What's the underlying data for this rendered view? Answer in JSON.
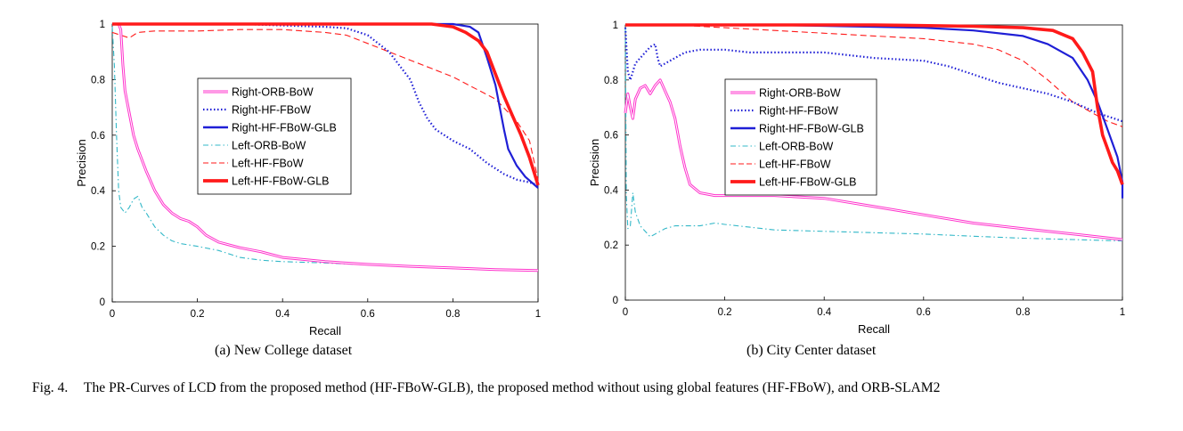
{
  "figure": {
    "label": "Fig. 4.",
    "caption": "The PR-Curves of LCD from the proposed method (HF-FBoW-GLB), the proposed method without using global features (HF-FBoW), and ORB-SLAM2"
  },
  "colors": {
    "magenta": "#ff33cc",
    "blue": "#1f1fd6",
    "cyan": "#33b8c8",
    "red": "#ff1a1a"
  },
  "chart_data": [
    {
      "type": "line",
      "subcaption": "(a)  New College dataset",
      "xlabel": "Recall",
      "ylabel": "Precision",
      "xlim": [
        0,
        1
      ],
      "ylim": [
        0,
        1
      ],
      "xticks": [
        "0",
        "0.2",
        "0.4",
        "0.6",
        "0.8",
        "1"
      ],
      "yticks": [
        "0",
        "0.2",
        "0.4",
        "0.6",
        "0.8",
        "1"
      ],
      "legend_position": "center-left",
      "series": [
        {
          "name": "Right-ORB-BoW",
          "style": "double",
          "color": "#ff33cc",
          "points": [
            [
              0,
              1
            ],
            [
              0.015,
              1
            ],
            [
              0.02,
              0.98
            ],
            [
              0.025,
              0.85
            ],
            [
              0.03,
              0.76
            ],
            [
              0.04,
              0.68
            ],
            [
              0.05,
              0.6
            ],
            [
              0.06,
              0.55
            ],
            [
              0.08,
              0.47
            ],
            [
              0.1,
              0.4
            ],
            [
              0.12,
              0.35
            ],
            [
              0.14,
              0.32
            ],
            [
              0.16,
              0.3
            ],
            [
              0.18,
              0.29
            ],
            [
              0.2,
              0.27
            ],
            [
              0.22,
              0.24
            ],
            [
              0.25,
              0.215
            ],
            [
              0.3,
              0.195
            ],
            [
              0.35,
              0.18
            ],
            [
              0.4,
              0.16
            ],
            [
              0.5,
              0.145
            ],
            [
              0.6,
              0.135
            ],
            [
              0.7,
              0.128
            ],
            [
              0.8,
              0.122
            ],
            [
              0.9,
              0.116
            ],
            [
              1,
              0.113
            ]
          ]
        },
        {
          "name": "Right-HF-FBoW",
          "style": "dotted",
          "color": "#1f1fd6",
          "points": [
            [
              0,
              1
            ],
            [
              0.3,
              1
            ],
            [
              0.5,
              0.99
            ],
            [
              0.55,
              0.985
            ],
            [
              0.6,
              0.96
            ],
            [
              0.65,
              0.9
            ],
            [
              0.68,
              0.84
            ],
            [
              0.7,
              0.8
            ],
            [
              0.72,
              0.72
            ],
            [
              0.74,
              0.66
            ],
            [
              0.76,
              0.62
            ],
            [
              0.8,
              0.58
            ],
            [
              0.84,
              0.55
            ],
            [
              0.88,
              0.5
            ],
            [
              0.92,
              0.46
            ],
            [
              0.95,
              0.44
            ],
            [
              0.98,
              0.43
            ],
            [
              1,
              0.42
            ]
          ]
        },
        {
          "name": "Right-HF-FBoW-GLB",
          "style": "solid",
          "color": "#1f1fd6",
          "points": [
            [
              0,
              1
            ],
            [
              0.5,
              1
            ],
            [
              0.8,
              1
            ],
            [
              0.84,
              0.99
            ],
            [
              0.86,
              0.97
            ],
            [
              0.88,
              0.88
            ],
            [
              0.9,
              0.78
            ],
            [
              0.92,
              0.62
            ],
            [
              0.93,
              0.55
            ],
            [
              0.95,
              0.49
            ],
            [
              0.97,
              0.45
            ],
            [
              1,
              0.41
            ]
          ]
        },
        {
          "name": "Left-ORB-BoW",
          "style": "dashdot",
          "color": "#33b8c8",
          "points": [
            [
              0,
              0.99
            ],
            [
              0.005,
              0.85
            ],
            [
              0.01,
              0.6
            ],
            [
              0.015,
              0.4
            ],
            [
              0.02,
              0.34
            ],
            [
              0.03,
              0.32
            ],
            [
              0.04,
              0.34
            ],
            [
              0.05,
              0.37
            ],
            [
              0.06,
              0.38
            ],
            [
              0.07,
              0.34
            ],
            [
              0.08,
              0.32
            ],
            [
              0.1,
              0.27
            ],
            [
              0.12,
              0.24
            ],
            [
              0.14,
              0.22
            ],
            [
              0.16,
              0.21
            ],
            [
              0.2,
              0.2
            ],
            [
              0.25,
              0.185
            ],
            [
              0.3,
              0.16
            ],
            [
              0.35,
              0.15
            ],
            [
              0.4,
              0.145
            ],
            [
              0.5,
              0.14
            ],
            [
              0.6,
              0.133
            ],
            [
              0.7,
              0.126
            ],
            [
              0.8,
              0.12
            ],
            [
              0.9,
              0.115
            ],
            [
              1,
              0.112
            ]
          ]
        },
        {
          "name": "Left-HF-FBoW",
          "style": "dashed",
          "color": "#ff1a1a",
          "points": [
            [
              0,
              0.97
            ],
            [
              0.02,
              0.96
            ],
            [
              0.04,
              0.95
            ],
            [
              0.06,
              0.97
            ],
            [
              0.1,
              0.975
            ],
            [
              0.2,
              0.975
            ],
            [
              0.3,
              0.98
            ],
            [
              0.4,
              0.98
            ],
            [
              0.5,
              0.97
            ],
            [
              0.55,
              0.96
            ],
            [
              0.6,
              0.93
            ],
            [
              0.65,
              0.9
            ],
            [
              0.7,
              0.87
            ],
            [
              0.75,
              0.84
            ],
            [
              0.8,
              0.81
            ],
            [
              0.85,
              0.77
            ],
            [
              0.9,
              0.73
            ],
            [
              0.95,
              0.65
            ],
            [
              0.98,
              0.58
            ],
            [
              1,
              0.44
            ]
          ]
        },
        {
          "name": "Left-HF-FBoW-GLB",
          "style": "thick",
          "color": "#ff1a1a",
          "points": [
            [
              0,
              1
            ],
            [
              0.5,
              1
            ],
            [
              0.75,
              1
            ],
            [
              0.8,
              0.99
            ],
            [
              0.83,
              0.97
            ],
            [
              0.86,
              0.94
            ],
            [
              0.88,
              0.9
            ],
            [
              0.9,
              0.82
            ],
            [
              0.92,
              0.74
            ],
            [
              0.94,
              0.67
            ],
            [
              0.96,
              0.6
            ],
            [
              0.98,
              0.52
            ],
            [
              1,
              0.42
            ]
          ]
        }
      ]
    },
    {
      "type": "line",
      "subcaption": "(b)  City Center dataset",
      "xlabel": "Recall",
      "ylabel": "Precision",
      "xlim": [
        0,
        1
      ],
      "ylim": [
        0,
        1
      ],
      "xticks": [
        "0",
        "0.2",
        "0.4",
        "0.6",
        "0.8",
        "1"
      ],
      "yticks": [
        "0",
        "0.2",
        "0.4",
        "0.6",
        "0.8",
        "1"
      ],
      "legend_position": "center-left",
      "series": [
        {
          "name": "Right-ORB-BoW",
          "style": "double",
          "color": "#ff33cc",
          "points": [
            [
              0,
              0.68
            ],
            [
              0.005,
              0.75
            ],
            [
              0.01,
              0.7
            ],
            [
              0.015,
              0.66
            ],
            [
              0.02,
              0.73
            ],
            [
              0.03,
              0.77
            ],
            [
              0.04,
              0.78
            ],
            [
              0.05,
              0.75
            ],
            [
              0.06,
              0.78
            ],
            [
              0.07,
              0.8
            ],
            [
              0.08,
              0.76
            ],
            [
              0.09,
              0.72
            ],
            [
              0.1,
              0.66
            ],
            [
              0.11,
              0.56
            ],
            [
              0.12,
              0.48
            ],
            [
              0.13,
              0.42
            ],
            [
              0.15,
              0.39
            ],
            [
              0.18,
              0.38
            ],
            [
              0.25,
              0.38
            ],
            [
              0.3,
              0.38
            ],
            [
              0.4,
              0.37
            ],
            [
              0.5,
              0.34
            ],
            [
              0.6,
              0.31
            ],
            [
              0.7,
              0.28
            ],
            [
              0.8,
              0.26
            ],
            [
              0.9,
              0.24
            ],
            [
              1,
              0.22
            ]
          ]
        },
        {
          "name": "Right-HF-FBoW",
          "style": "dotted",
          "color": "#1f1fd6",
          "points": [
            [
              0,
              0.99
            ],
            [
              0.005,
              0.83
            ],
            [
              0.01,
              0.8
            ],
            [
              0.02,
              0.86
            ],
            [
              0.03,
              0.88
            ],
            [
              0.04,
              0.9
            ],
            [
              0.05,
              0.92
            ],
            [
              0.06,
              0.93
            ],
            [
              0.065,
              0.88
            ],
            [
              0.07,
              0.85
            ],
            [
              0.08,
              0.86
            ],
            [
              0.1,
              0.88
            ],
            [
              0.12,
              0.9
            ],
            [
              0.15,
              0.91
            ],
            [
              0.2,
              0.91
            ],
            [
              0.25,
              0.9
            ],
            [
              0.3,
              0.9
            ],
            [
              0.4,
              0.9
            ],
            [
              0.5,
              0.88
            ],
            [
              0.6,
              0.87
            ],
            [
              0.65,
              0.85
            ],
            [
              0.7,
              0.82
            ],
            [
              0.75,
              0.79
            ],
            [
              0.8,
              0.77
            ],
            [
              0.85,
              0.75
            ],
            [
              0.9,
              0.72
            ],
            [
              0.95,
              0.68
            ],
            [
              1,
              0.65
            ]
          ]
        },
        {
          "name": "Right-HF-FBoW-GLB",
          "style": "solid",
          "color": "#1f1fd6",
          "points": [
            [
              0,
              1
            ],
            [
              0.3,
              1
            ],
            [
              0.6,
              0.99
            ],
            [
              0.7,
              0.98
            ],
            [
              0.8,
              0.96
            ],
            [
              0.85,
              0.93
            ],
            [
              0.9,
              0.88
            ],
            [
              0.93,
              0.8
            ],
            [
              0.95,
              0.72
            ],
            [
              0.97,
              0.62
            ],
            [
              0.99,
              0.52
            ],
            [
              1,
              0.43
            ],
            [
              1,
              0.37
            ]
          ]
        },
        {
          "name": "Left-ORB-BoW",
          "style": "dashdot",
          "color": "#33b8c8",
          "points": [
            [
              0,
              0.99
            ],
            [
              0.002,
              0.38
            ],
            [
              0.005,
              0.26
            ],
            [
              0.01,
              0.27
            ],
            [
              0.015,
              0.39
            ],
            [
              0.02,
              0.32
            ],
            [
              0.03,
              0.27
            ],
            [
              0.04,
              0.25
            ],
            [
              0.05,
              0.23
            ],
            [
              0.06,
              0.24
            ],
            [
              0.08,
              0.26
            ],
            [
              0.1,
              0.27
            ],
            [
              0.15,
              0.27
            ],
            [
              0.18,
              0.28
            ],
            [
              0.2,
              0.275
            ],
            [
              0.3,
              0.255
            ],
            [
              0.4,
              0.25
            ],
            [
              0.5,
              0.245
            ],
            [
              0.6,
              0.24
            ],
            [
              0.7,
              0.232
            ],
            [
              0.8,
              0.225
            ],
            [
              0.9,
              0.22
            ],
            [
              1,
              0.215
            ]
          ]
        },
        {
          "name": "Left-HF-FBoW",
          "style": "dashed",
          "color": "#ff1a1a",
          "points": [
            [
              0,
              1
            ],
            [
              0.1,
              1
            ],
            [
              0.2,
              0.99
            ],
            [
              0.3,
              0.98
            ],
            [
              0.4,
              0.97
            ],
            [
              0.5,
              0.96
            ],
            [
              0.6,
              0.95
            ],
            [
              0.7,
              0.93
            ],
            [
              0.75,
              0.91
            ],
            [
              0.8,
              0.87
            ],
            [
              0.85,
              0.8
            ],
            [
              0.9,
              0.72
            ],
            [
              0.94,
              0.68
            ],
            [
              0.97,
              0.65
            ],
            [
              1,
              0.63
            ]
          ]
        },
        {
          "name": "Left-HF-FBoW-GLB",
          "style": "thick",
          "color": "#ff1a1a",
          "points": [
            [
              0,
              1
            ],
            [
              0.3,
              1
            ],
            [
              0.5,
              1
            ],
            [
              0.7,
              0.995
            ],
            [
              0.8,
              0.99
            ],
            [
              0.86,
              0.98
            ],
            [
              0.9,
              0.95
            ],
            [
              0.92,
              0.9
            ],
            [
              0.94,
              0.83
            ],
            [
              0.95,
              0.7
            ],
            [
              0.96,
              0.6
            ],
            [
              0.97,
              0.55
            ],
            [
              0.98,
              0.5
            ],
            [
              0.99,
              0.47
            ],
            [
              1,
              0.42
            ]
          ]
        }
      ]
    }
  ]
}
